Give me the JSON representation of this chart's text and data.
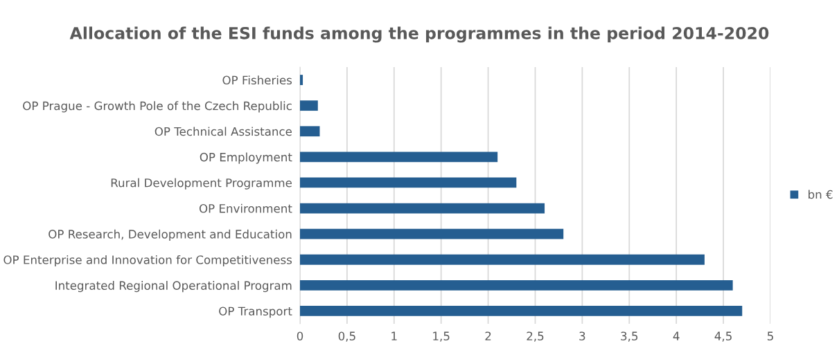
{
  "chart_data": {
    "type": "bar",
    "orientation": "horizontal",
    "title": "Allocation of the ESI funds among the programmes in the period 2014-2020",
    "categories": [
      "OP Fisheries",
      "OP Prague - Growth Pole of the Czech Republic",
      "OP Technical Assistance",
      "OP Employment",
      "Rural Development Programme",
      "OP Environment",
      "OP Research, Development and Education",
      "OP Enterprise and Innovation for Competitiveness",
      "Integrated Regional Operational Program",
      "OP Transport"
    ],
    "series": [
      {
        "name": "bn €",
        "color": "#255e91",
        "values": [
          0.03,
          0.19,
          0.21,
          2.1,
          2.3,
          2.6,
          2.8,
          4.3,
          4.6,
          4.7
        ]
      }
    ],
    "xlim": [
      0,
      5
    ],
    "xticks": [
      0,
      {
        "value": 0.5,
        "label": "0,5"
      },
      1,
      {
        "value": 1.5,
        "label": "1,5"
      },
      2,
      {
        "value": 2.5,
        "label": "2,5"
      },
      3,
      {
        "value": 3.5,
        "label": "3,5"
      },
      4,
      {
        "value": 4.5,
        "label": "4,5"
      },
      5
    ],
    "grid": "x",
    "legend": "right"
  }
}
